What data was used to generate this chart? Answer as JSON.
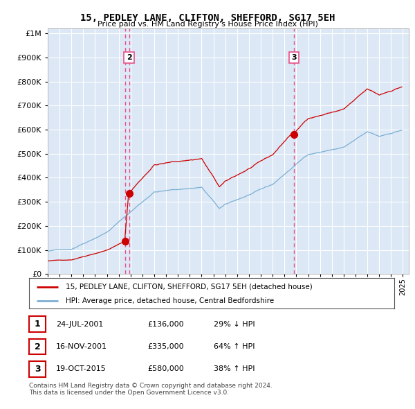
{
  "title": "15, PEDLEY LANE, CLIFTON, SHEFFORD, SG17 5EH",
  "subtitle": "Price paid vs. HM Land Registry's House Price Index (HPI)",
  "ytick_values": [
    0,
    100000,
    200000,
    300000,
    400000,
    500000,
    600000,
    700000,
    800000,
    900000,
    1000000
  ],
  "ylim": [
    0,
    1020000
  ],
  "xlim_start": 1995.0,
  "xlim_end": 2025.5,
  "hpi_color": "#7bafd4",
  "price_color": "#cc0000",
  "dashed_line_color": "#e8508a",
  "plot_bg_color": "#dce8f5",
  "sale_points": [
    {
      "year": 2001.556,
      "price": 136000,
      "label": "1"
    },
    {
      "year": 2001.877,
      "price": 335000,
      "label": "2"
    },
    {
      "year": 2015.795,
      "price": 580000,
      "label": "3"
    }
  ],
  "legend_line1": "15, PEDLEY LANE, CLIFTON, SHEFFORD, SG17 5EH (detached house)",
  "legend_line2": "HPI: Average price, detached house, Central Bedfordshire",
  "table_rows": [
    {
      "num": "1",
      "date": "24-JUL-2001",
      "price": "£136,000",
      "change": "29% ↓ HPI"
    },
    {
      "num": "2",
      "date": "16-NOV-2001",
      "price": "£335,000",
      "change": "64% ↑ HPI"
    },
    {
      "num": "3",
      "date": "19-OCT-2015",
      "price": "£580,000",
      "change": "38% ↑ HPI"
    }
  ],
  "footnote": "Contains HM Land Registry data © Crown copyright and database right 2024.\nThis data is licensed under the Open Government Licence v3.0."
}
